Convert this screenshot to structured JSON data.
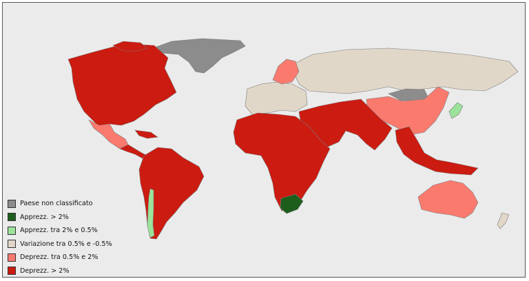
{
  "colors": {
    "not_classified": "#8c8c8c",
    "appreciation_high": "#1d5e1d",
    "appreciation_low": "#9be39b",
    "stable": "#e0d7c8",
    "depreciation_low": "#fb7a6e",
    "depreciation_high": "#cc1b10",
    "water": "#ebebeb"
  },
  "legend": {
    "items": [
      {
        "label": "Paese non classificato",
        "color": "#8c8c8c"
      },
      {
        "label": "Apprezz. > 2%",
        "color": "#1d5e1d"
      },
      {
        "label": "Apprezz. tra 2% e 0.5%",
        "color": "#9be39b"
      },
      {
        "label": "Variazione tra 0.5% e -0.5%",
        "color": "#e0d7c8"
      },
      {
        "label": "Deprezz. tra 0.5% e 2%",
        "color": "#fb7a6e"
      },
      {
        "label": "Deprezz. > 2%",
        "color": "#cc1b10"
      }
    ]
  },
  "regions": [
    {
      "name": "Greenland",
      "class": "not_classified"
    },
    {
      "name": "Canada / United States",
      "class": "depreciation_high"
    },
    {
      "name": "Mexico",
      "class": "depreciation_low"
    },
    {
      "name": "Central America & Caribbean",
      "class": "depreciation_high"
    },
    {
      "name": "South America",
      "class": "depreciation_high"
    },
    {
      "name": "Chile",
      "class": "appreciation_low"
    },
    {
      "name": "Russia",
      "class": "stable"
    },
    {
      "name": "Europe",
      "class": "stable"
    },
    {
      "name": "Scandinavia",
      "class": "depreciation_low"
    },
    {
      "name": "Mongolia",
      "class": "not_classified"
    },
    {
      "name": "China",
      "class": "depreciation_low"
    },
    {
      "name": "Japan",
      "class": "appreciation_low"
    },
    {
      "name": "Middle East & South Asia",
      "class": "depreciation_high"
    },
    {
      "name": "Africa",
      "class": "depreciation_high"
    },
    {
      "name": "South Africa",
      "class": "appreciation_high"
    },
    {
      "name": "Southeast Asia",
      "class": "depreciation_high"
    },
    {
      "name": "Australia",
      "class": "depreciation_low"
    },
    {
      "name": "New Zealand",
      "class": "stable"
    }
  ]
}
